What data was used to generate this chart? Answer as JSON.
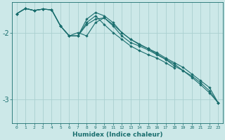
{
  "xlabel": "Humidex (Indice chaleur)",
  "bg_color": "#cce8e8",
  "grid_color": "#aad0d0",
  "line_color": "#1a6e6e",
  "xlim": [
    -0.5,
    23.5
  ],
  "ylim": [
    -3.35,
    -1.55
  ],
  "yticks": [
    -3,
    -2
  ],
  "xticks": [
    0,
    1,
    2,
    3,
    4,
    5,
    6,
    7,
    8,
    9,
    10,
    11,
    12,
    13,
    14,
    15,
    16,
    17,
    18,
    19,
    20,
    21,
    22,
    23
  ],
  "series": [
    [
      0,
      1,
      2,
      3,
      4,
      5,
      6,
      7,
      8,
      9,
      10,
      11,
      12,
      13,
      14,
      15,
      16,
      17,
      18,
      19,
      20,
      21,
      22,
      23
    ],
    [
      0,
      1,
      2,
      3,
      4,
      5,
      6,
      7,
      8,
      9,
      10,
      11,
      12,
      13,
      14,
      15,
      16,
      17,
      18,
      19,
      20,
      21,
      22,
      23
    ],
    [
      0,
      1,
      2,
      3,
      4,
      5,
      6,
      7,
      8,
      9,
      10,
      11,
      12,
      13,
      14,
      15,
      16,
      17,
      18
    ],
    [
      0,
      1,
      2,
      3,
      4,
      5,
      6,
      7,
      8,
      9,
      10,
      11,
      12,
      13,
      14,
      15,
      16,
      17,
      18,
      19,
      20,
      21,
      22,
      23
    ]
  ],
  "y_series": [
    [
      -1.72,
      -1.64,
      -1.67,
      -1.65,
      -1.66,
      -1.9,
      -2.05,
      -2.05,
      -1.8,
      -1.7,
      -1.75,
      -1.85,
      -2.0,
      -2.1,
      -2.18,
      -2.24,
      -2.3,
      -2.38,
      -2.45,
      -2.52,
      -2.62,
      -2.72,
      -2.82,
      -3.05
    ],
    [
      -1.72,
      -1.64,
      -1.67,
      -1.65,
      -1.66,
      -1.9,
      -2.05,
      -2.0,
      -2.05,
      -1.85,
      -1.78,
      -1.9,
      -2.05,
      -2.15,
      -2.2,
      -2.26,
      -2.33,
      -2.4,
      -2.47,
      -2.57,
      -2.65,
      -2.75,
      -2.87,
      -3.05
    ],
    [
      -1.72,
      -1.64,
      -1.67,
      -1.65,
      -1.66,
      -1.9,
      -2.05,
      -2.05,
      -1.85,
      -1.75,
      -1.88,
      -2.0,
      -2.1,
      -2.2,
      -2.27,
      -2.33,
      -2.38,
      -2.45,
      -2.53
    ],
    [
      -1.72,
      -1.64,
      -1.67,
      -1.65,
      -1.66,
      -1.9,
      -2.05,
      -2.05,
      -1.88,
      -1.8,
      -1.78,
      -1.88,
      -2.0,
      -2.1,
      -2.17,
      -2.24,
      -2.32,
      -2.4,
      -2.5,
      -2.57,
      -2.67,
      -2.78,
      -2.9,
      -3.05
    ]
  ]
}
